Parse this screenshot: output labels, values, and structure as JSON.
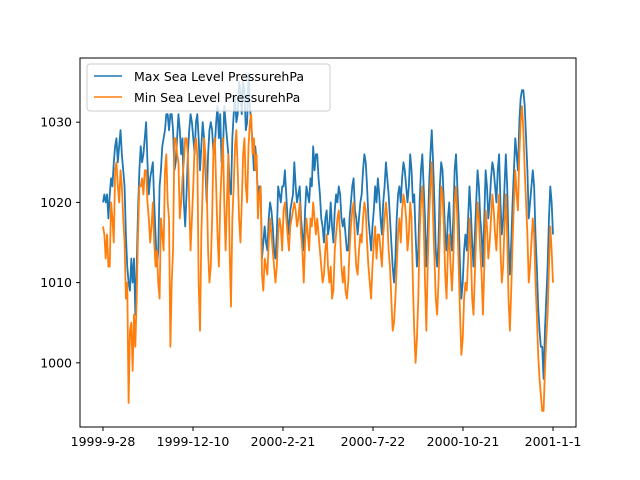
{
  "chart_data": {
    "type": "line",
    "title": "",
    "xlabel": "",
    "ylabel": "",
    "x_tick_labels": [
      "1999-9-28",
      "1999-12-10",
      "2000-2-21",
      "2000-7-22",
      "2000-10-21",
      "2001-1-1"
    ],
    "y_ticks": [
      1000,
      1010,
      1020,
      1030
    ],
    "ylim": [
      992,
      1038
    ],
    "grid": false,
    "legend_position": "top-left",
    "colors": {
      "max": "#1f77b4",
      "min": "#ff7f0e"
    },
    "series": [
      {
        "name": "Max Sea Level PressurehPa",
        "values": [
          1020,
          1021,
          1020,
          1021,
          1018,
          1021,
          1023,
          1022,
          1025,
          1027,
          1028,
          1025,
          1027,
          1029,
          1026,
          1024,
          1022,
          1016,
          1012,
          1010,
          1009,
          1013,
          1010,
          1013,
          1006,
          1012,
          1019,
          1024,
          1027,
          1025,
          1026,
          1028,
          1030,
          1025,
          1021,
          1023,
          1024,
          1025,
          1020,
          1016,
          1012,
          1014,
          1022,
          1024,
          1027,
          1028,
          1029,
          1031,
          1031,
          1029,
          1031,
          1031,
          1029,
          1024,
          1025,
          1028,
          1031,
          1029,
          1026,
          1028,
          1020,
          1017,
          1021,
          1026,
          1029,
          1031,
          1030,
          1028,
          1026,
          1030,
          1031,
          1028,
          1024,
          1027,
          1030,
          1028,
          1024,
          1020,
          1026,
          1029,
          1030,
          1029,
          1026,
          1027,
          1030,
          1032,
          1028,
          1031,
          1025,
          1026,
          1032,
          1030,
          1028,
          1026,
          1022,
          1021,
          1028,
          1031,
          1033,
          1030,
          1031,
          1035,
          1034,
          1031,
          1035,
          1034,
          1029,
          1030,
          1036,
          1032,
          1030,
          1027,
          1024,
          1027,
          1025,
          1020,
          1022,
          1022,
          1013,
          1015,
          1017,
          1015,
          1014,
          1018,
          1020,
          1019,
          1017,
          1014,
          1013,
          1016,
          1022,
          1021,
          1020,
          1022,
          1022,
          1024,
          1021,
          1018,
          1016,
          1019,
          1020,
          1021,
          1025,
          1022,
          1020,
          1021,
          1022,
          1018,
          1016,
          1014,
          1019,
          1022,
          1021,
          1020,
          1023,
          1022,
          1027,
          1024,
          1026,
          1026,
          1023,
          1021,
          1018,
          1017,
          1015,
          1018,
          1019,
          1016,
          1017,
          1020,
          1017,
          1015,
          1019,
          1021,
          1020,
          1022,
          1021,
          1018,
          1017,
          1018,
          1016,
          1014,
          1014,
          1018,
          1020,
          1022,
          1023,
          1019,
          1018,
          1016,
          1018,
          1020,
          1021,
          1024,
          1026,
          1025,
          1022,
          1018,
          1016,
          1014,
          1017,
          1019,
          1022,
          1020,
          1023,
          1021,
          1018,
          1016,
          1020,
          1022,
          1025,
          1023,
          1021,
          1018,
          1015,
          1012,
          1010,
          1013,
          1018,
          1021,
          1022,
          1020,
          1023,
          1025,
          1024,
          1022,
          1020,
          1022,
          1026,
          1024,
          1020,
          1021,
          1016,
          1012,
          1014,
          1020,
          1024,
          1026,
          1022,
          1018,
          1012,
          1016,
          1022,
          1026,
          1029,
          1025,
          1020,
          1014,
          1012,
          1015,
          1022,
          1025,
          1024,
          1020,
          1016,
          1014,
          1018,
          1020,
          1016,
          1014,
          1018,
          1024,
          1026,
          1022,
          1018,
          1012,
          1008,
          1010,
          1014,
          1016,
          1014,
          1018,
          1022,
          1019,
          1015,
          1012,
          1016,
          1020,
          1024,
          1022,
          1018,
          1016,
          1012,
          1018,
          1024,
          1022,
          1018,
          1020,
          1023,
          1025,
          1024,
          1022,
          1020,
          1024,
          1026,
          1020,
          1016,
          1018,
          1022,
          1026,
          1022,
          1015,
          1011,
          1015,
          1020,
          1024,
          1028,
          1026,
          1024,
          1030,
          1033,
          1034,
          1034,
          1032,
          1028,
          1024,
          1018,
          1020,
          1022,
          1024,
          1022,
          1016,
          1012,
          1007,
          1004,
          1002,
          1002,
          998,
          1004,
          1008,
          1012,
          1018,
          1022,
          1020,
          1016
        ]
      },
      {
        "name": "Min Sea Level PressurehPa",
        "values": [
          1017,
          1016,
          1013,
          1016,
          1012,
          1012,
          1020,
          1018,
          1015,
          1024,
          1025,
          1022,
          1020,
          1024,
          1022,
          1018,
          1015,
          1008,
          1010,
          995,
          1004,
          1005,
          999,
          1006,
          1002,
          1008,
          1016,
          1022,
          1022,
          1023,
          1021,
          1024,
          1024,
          1020,
          1018,
          1015,
          1017,
          1020,
          1015,
          1012,
          1014,
          1010,
          1008,
          1018,
          1016,
          1014,
          1024,
          1026,
          1020,
          1018,
          1002,
          1010,
          1014,
          1028,
          1028,
          1026,
          1025,
          1018,
          1020,
          1023,
          1025,
          1028,
          1028,
          1026,
          1020,
          1014,
          1018,
          1022,
          1027,
          1028,
          1026,
          1010,
          1004,
          1016,
          1022,
          1028,
          1026,
          1022,
          1014,
          1010,
          1012,
          1018,
          1027,
          1028,
          1022,
          1016,
          1012,
          1020,
          1024,
          1028,
          1020,
          1014,
          1020,
          1026,
          1014,
          1007,
          1018,
          1022,
          1027,
          1029,
          1024,
          1018,
          1015,
          1020,
          1026,
          1028,
          1022,
          1020,
          1027,
          1030,
          1031,
          1026,
          1028,
          1024,
          1026,
          1018,
          1021,
          1022,
          1011,
          1009,
          1013,
          1012,
          1011,
          1015,
          1018,
          1016,
          1014,
          1012,
          1010,
          1012,
          1016,
          1018,
          1017,
          1014,
          1019,
          1020,
          1018,
          1016,
          1014,
          1017,
          1018,
          1019,
          1020,
          1019,
          1017,
          1018,
          1020,
          1016,
          1014,
          1010,
          1015,
          1018,
          1016,
          1014,
          1018,
          1017,
          1020,
          1018,
          1016,
          1018,
          1016,
          1014,
          1012,
          1010,
          1011,
          1014,
          1016,
          1012,
          1010,
          1012,
          1008,
          1009,
          1014,
          1016,
          1018,
          1019,
          1016,
          1012,
          1010,
          1012,
          1009,
          1008,
          1010,
          1014,
          1017,
          1019,
          1020,
          1015,
          1012,
          1011,
          1014,
          1016,
          1015,
          1018,
          1020,
          1019,
          1015,
          1012,
          1010,
          1008,
          1012,
          1015,
          1017,
          1013,
          1016,
          1016,
          1014,
          1012,
          1016,
          1018,
          1020,
          1018,
          1014,
          1012,
          1008,
          1004,
          1005,
          1008,
          1012,
          1016,
          1018,
          1015,
          1019,
          1021,
          1020,
          1018,
          1014,
          1016,
          1020,
          1018,
          1010,
          1004,
          1000,
          1003,
          1008,
          1016,
          1020,
          1022,
          1018,
          1010,
          1004,
          1012,
          1018,
          1022,
          1025,
          1018,
          1013,
          1008,
          1006,
          1010,
          1016,
          1022,
          1021,
          1017,
          1011,
          1008,
          1014,
          1016,
          1012,
          1009,
          1013,
          1020,
          1022,
          1018,
          1012,
          1006,
          1001,
          1003,
          1008,
          1010,
          1009,
          1013,
          1018,
          1014,
          1008,
          1006,
          1011,
          1016,
          1020,
          1018,
          1014,
          1011,
          1006,
          1012,
          1019,
          1017,
          1013,
          1015,
          1018,
          1021,
          1019,
          1016,
          1014,
          1018,
          1021,
          1014,
          1010,
          1012,
          1017,
          1021,
          1016,
          1008,
          1004,
          1009,
          1015,
          1020,
          1024,
          1021,
          1019,
          1026,
          1030,
          1032,
          1029,
          1024,
          1020,
          1016,
          1010,
          1012,
          1015,
          1018,
          1016,
          1010,
          1006,
          1001,
          998,
          996,
          994,
          994,
          999,
          1003,
          1006,
          1012,
          1017,
          1014,
          1010
        ]
      }
    ]
  }
}
